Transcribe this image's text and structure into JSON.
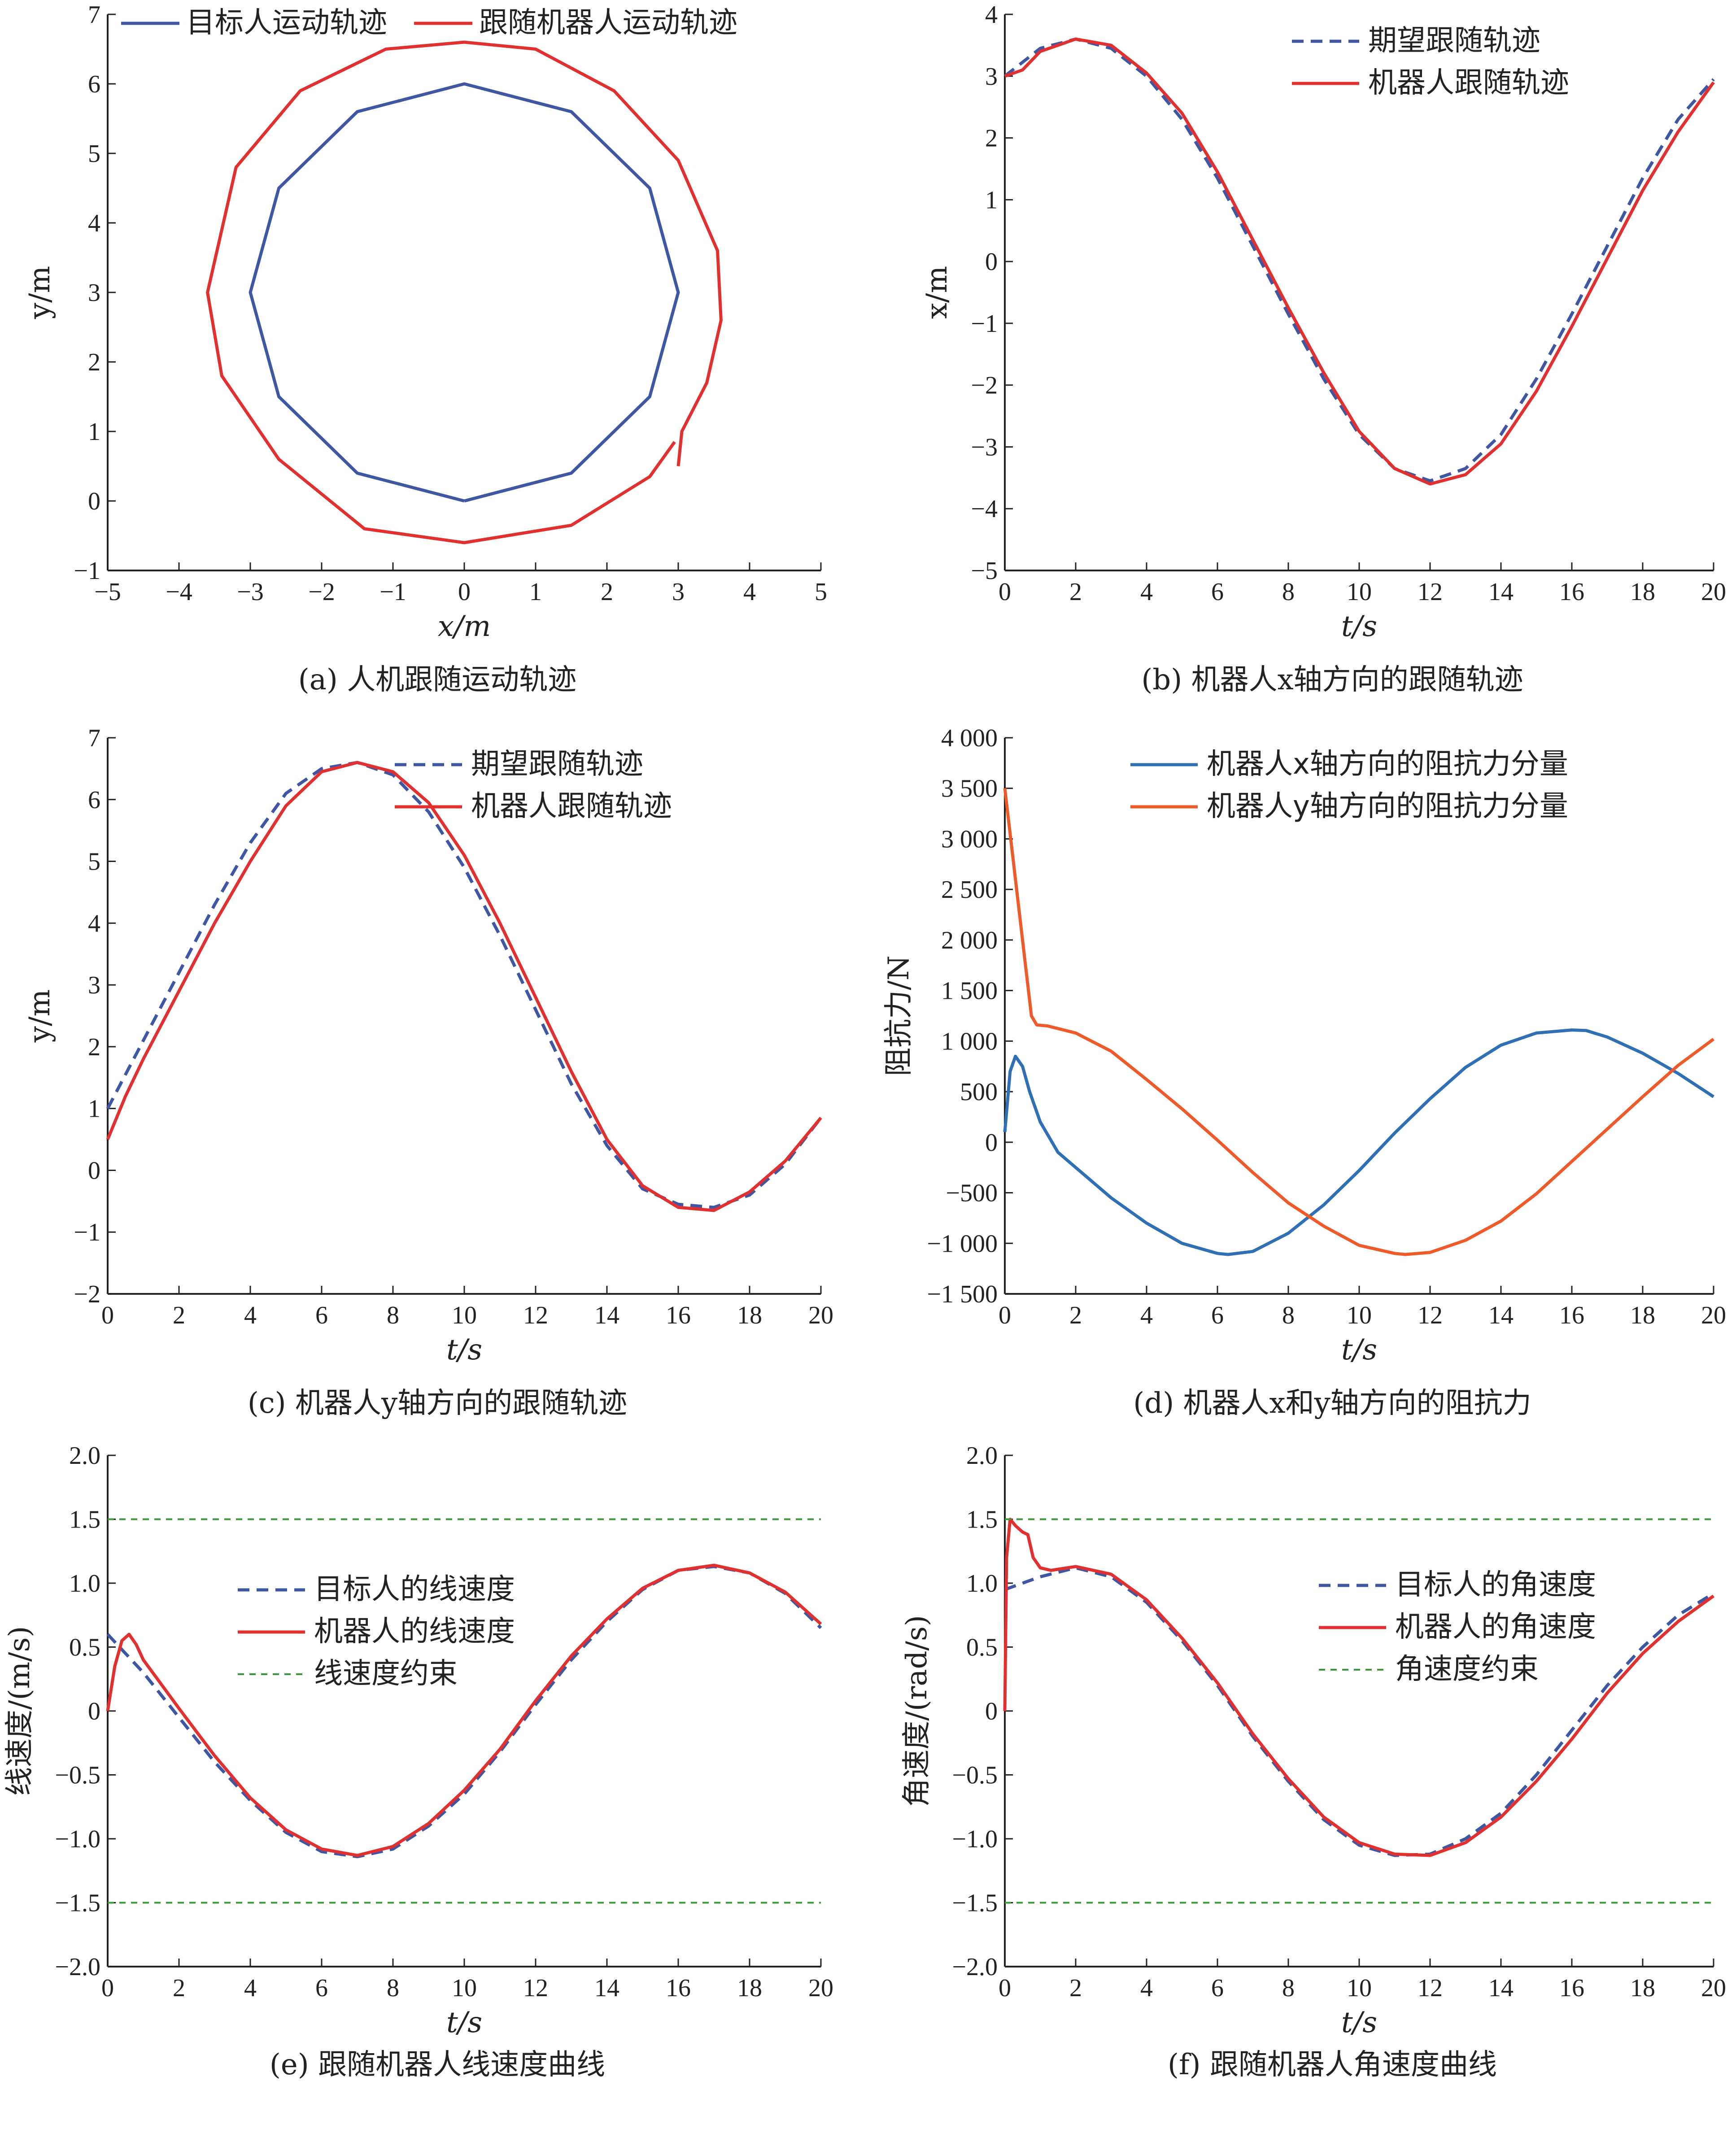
{
  "colors": {
    "blue": "#3f56a3",
    "red": "#e03030",
    "steel": "#2f6fb4",
    "orange": "#ee5a2a",
    "green": "#3a9a3a"
  },
  "chart_data": [
    {
      "id": "a",
      "type": "line",
      "caption": "(a) 人机跟随运动轨迹",
      "xlabel": "x/m",
      "ylabel": "y/m",
      "xlim": [
        -5,
        5
      ],
      "ylim": [
        -1,
        7
      ],
      "xticks": [
        "−5",
        "−4",
        "−3",
        "−2",
        "−1",
        "0",
        "1",
        "2",
        "3",
        "4",
        "5"
      ],
      "yticks": [
        "−1",
        "0",
        "1",
        "2",
        "3",
        "4",
        "5",
        "6",
        "7"
      ],
      "legend_position": "top",
      "series": [
        {
          "name": "目标人运动轨迹",
          "color": "#3f56a3",
          "dash": "solid",
          "x": [
            0,
            1.5,
            2.6,
            3,
            2.6,
            1.5,
            0,
            -1.5,
            -2.6,
            -3,
            -2.6,
            -1.5,
            0
          ],
          "y": [
            0,
            0.4,
            1.5,
            3,
            4.5,
            5.6,
            6,
            5.6,
            4.5,
            3,
            1.5,
            0.4,
            0
          ]
        },
        {
          "name": "跟随机器人运动轨迹",
          "color": "#e03030",
          "dash": "solid",
          "x": [
            3.0,
            3.05,
            3.4,
            3.6,
            3.55,
            3.0,
            2.1,
            1.0,
            0,
            -1.1,
            -2.3,
            -3.2,
            -3.6,
            -3.4,
            -2.6,
            -1.4,
            0,
            1.5,
            2.6,
            2.95
          ],
          "y": [
            0.5,
            1.0,
            1.7,
            2.6,
            3.6,
            4.9,
            5.9,
            6.5,
            6.6,
            6.5,
            5.9,
            4.8,
            3.0,
            1.8,
            0.6,
            -0.4,
            -0.6,
            -0.35,
            0.35,
            0.85
          ]
        }
      ]
    },
    {
      "id": "b",
      "type": "line",
      "caption": "(b) 机器人x轴方向的跟随轨迹",
      "xlabel": "t/s",
      "ylabel": "x/m",
      "xlim": [
        0,
        20
      ],
      "ylim": [
        -5,
        4
      ],
      "xticks": [
        "0",
        "2",
        "4",
        "6",
        "8",
        "10",
        "12",
        "14",
        "16",
        "18",
        "20"
      ],
      "yticks": [
        "−5",
        "−4",
        "−3",
        "−2",
        "−1",
        "0",
        "1",
        "2",
        "3",
        "4"
      ],
      "legend_position": "top-right",
      "series": [
        {
          "name": "期望跟随轨迹",
          "color": "#3f56a3",
          "dash": "dashed",
          "x": [
            0,
            1,
            2,
            3,
            4,
            5,
            6,
            7,
            8,
            9,
            10,
            11,
            12,
            13,
            14,
            15,
            16,
            17,
            18,
            19,
            20
          ],
          "y": [
            3.0,
            3.45,
            3.6,
            3.45,
            3.0,
            2.3,
            1.35,
            0.25,
            -0.85,
            -1.9,
            -2.8,
            -3.35,
            -3.55,
            -3.35,
            -2.8,
            -1.9,
            -0.85,
            0.25,
            1.35,
            2.3,
            2.95
          ]
        },
        {
          "name": "机器人跟随轨迹",
          "color": "#e03030",
          "dash": "solid",
          "x": [
            0,
            0.5,
            1,
            2,
            3,
            4,
            5,
            6,
            7,
            8,
            9,
            10,
            11,
            12,
            13,
            14,
            15,
            16,
            17,
            18,
            19,
            20
          ],
          "y": [
            3.0,
            3.1,
            3.4,
            3.6,
            3.5,
            3.05,
            2.4,
            1.45,
            0.35,
            -0.75,
            -1.8,
            -2.75,
            -3.35,
            -3.6,
            -3.45,
            -2.95,
            -2.1,
            -1.05,
            0.05,
            1.15,
            2.1,
            2.9
          ]
        }
      ]
    },
    {
      "id": "c",
      "type": "line",
      "caption": "(c) 机器人y轴方向的跟随轨迹",
      "xlabel": "t/s",
      "ylabel": "y/m",
      "xlim": [
        0,
        20
      ],
      "ylim": [
        -2,
        7
      ],
      "xticks": [
        "0",
        "2",
        "4",
        "6",
        "8",
        "10",
        "12",
        "14",
        "16",
        "18",
        "20"
      ],
      "yticks": [
        "−2",
        "−1",
        "0",
        "1",
        "2",
        "3",
        "4",
        "5",
        "6",
        "7"
      ],
      "legend_position": "top-right",
      "series": [
        {
          "name": "期望跟随轨迹",
          "color": "#3f56a3",
          "dash": "dashed",
          "x": [
            0,
            1,
            2,
            3,
            4,
            5,
            6,
            7,
            8,
            9,
            10,
            11,
            12,
            13,
            14,
            15,
            16,
            17,
            18,
            19,
            20
          ],
          "y": [
            1.0,
            2.1,
            3.2,
            4.3,
            5.3,
            6.1,
            6.5,
            6.6,
            6.4,
            5.8,
            4.9,
            3.8,
            2.6,
            1.4,
            0.4,
            -0.3,
            -0.55,
            -0.6,
            -0.4,
            0.1,
            0.85
          ]
        },
        {
          "name": "机器人跟随轨迹",
          "color": "#e03030",
          "dash": "solid",
          "x": [
            0,
            0.5,
            1,
            2,
            3,
            4,
            5,
            6,
            7,
            8,
            9,
            10,
            11,
            12,
            13,
            14,
            15,
            16,
            17,
            18,
            19,
            20
          ],
          "y": [
            0.5,
            1.2,
            1.8,
            2.9,
            4.0,
            5.0,
            5.9,
            6.45,
            6.6,
            6.45,
            5.95,
            5.1,
            4.0,
            2.8,
            1.6,
            0.5,
            -0.25,
            -0.6,
            -0.65,
            -0.35,
            0.15,
            0.85
          ]
        }
      ]
    },
    {
      "id": "d",
      "type": "line",
      "caption": "(d) 机器人x和y轴方向的阻抗力",
      "xlabel": "t/s",
      "ylabel": "阻抗力/N",
      "xlim": [
        0,
        20
      ],
      "ylim": [
        -1500,
        4000
      ],
      "xticks": [
        "0",
        "2",
        "4",
        "6",
        "8",
        "10",
        "12",
        "14",
        "16",
        "18",
        "20"
      ],
      "yticks": [
        "−1 500",
        "−1 000",
        "−500",
        "0",
        "500",
        "1 000",
        "1 500",
        "2 000",
        "2 500",
        "3 000",
        "3 500",
        "4 000"
      ],
      "legend_position": "top-right",
      "series": [
        {
          "name": "机器人x轴方向的阻抗力分量",
          "color": "#2f6fb4",
          "dash": "solid",
          "x": [
            0,
            0.15,
            0.3,
            0.5,
            0.7,
            1,
            1.5,
            2,
            3,
            4,
            5,
            6,
            6.3,
            7,
            8,
            9,
            10,
            11,
            12,
            13,
            14,
            15,
            16,
            16.4,
            17,
            18,
            19,
            20
          ],
          "y": [
            100,
            700,
            850,
            750,
            500,
            200,
            -100,
            -250,
            -550,
            -800,
            -1000,
            -1100,
            -1110,
            -1080,
            -900,
            -620,
            -280,
            90,
            430,
            740,
            960,
            1080,
            1110,
            1105,
            1040,
            880,
            680,
            450
          ]
        },
        {
          "name": "机器人y轴方向的阻抗力分量",
          "color": "#ee5a2a",
          "dash": "solid",
          "x": [
            0,
            0.2,
            0.4,
            0.6,
            0.75,
            0.9,
            1.2,
            2,
            3,
            4,
            5,
            6,
            7,
            8,
            9,
            10,
            11,
            11.3,
            12,
            13,
            14,
            15,
            16,
            17,
            18,
            19,
            20
          ],
          "y": [
            3500,
            2900,
            2300,
            1700,
            1250,
            1160,
            1150,
            1080,
            900,
            620,
            330,
            20,
            -300,
            -600,
            -830,
            -1020,
            -1100,
            -1110,
            -1090,
            -970,
            -780,
            -510,
            -190,
            130,
            450,
            760,
            1020
          ]
        }
      ]
    },
    {
      "id": "e",
      "type": "line",
      "caption": "(e) 跟随机器人线速度曲线",
      "xlabel": "t/s",
      "ylabel": "线速度/(m/s)",
      "xlim": [
        0,
        20
      ],
      "ylim": [
        -2.0,
        2.0
      ],
      "xticks": [
        "0",
        "2",
        "4",
        "6",
        "8",
        "10",
        "12",
        "14",
        "16",
        "18",
        "20"
      ],
      "yticks": [
        "−2.0",
        "−1.5",
        "−1.0",
        "−0.5",
        "0",
        "0.5",
        "1.0",
        "1.5",
        "2.0"
      ],
      "legend_position": "center-left",
      "series": [
        {
          "name": "目标人的线速度",
          "color": "#3f56a3",
          "dash": "dashed",
          "x": [
            0,
            1,
            2,
            3,
            4,
            5,
            6,
            7,
            8,
            9,
            10,
            11,
            12,
            13,
            14,
            15,
            16,
            17,
            18,
            19,
            20
          ],
          "y": [
            0.6,
            0.3,
            -0.05,
            -0.4,
            -0.7,
            -0.95,
            -1.1,
            -1.14,
            -1.08,
            -0.9,
            -0.65,
            -0.32,
            0.05,
            0.4,
            0.7,
            0.95,
            1.1,
            1.13,
            1.08,
            0.92,
            0.65
          ]
        },
        {
          "name": "机器人的线速度",
          "color": "#e03030",
          "dash": "solid",
          "x": [
            0,
            0.2,
            0.4,
            0.6,
            0.8,
            1,
            2,
            3,
            4,
            5,
            6,
            7,
            8,
            9,
            10,
            11,
            12,
            13,
            14,
            15,
            16,
            17,
            18,
            19,
            20
          ],
          "y": [
            0.0,
            0.35,
            0.55,
            0.6,
            0.52,
            0.4,
            0.02,
            -0.35,
            -0.68,
            -0.93,
            -1.08,
            -1.13,
            -1.06,
            -0.88,
            -0.62,
            -0.3,
            0.08,
            0.43,
            0.72,
            0.96,
            1.1,
            1.14,
            1.08,
            0.93,
            0.68
          ]
        },
        {
          "name": "线速度约束",
          "color": "#3a9a3a",
          "dash": "dotted",
          "x": [
            0,
            20
          ],
          "y": [
            1.5,
            1.5
          ],
          "mirror_y": [
            -1.5,
            -1.5
          ]
        }
      ]
    },
    {
      "id": "f",
      "type": "line",
      "caption": "(f) 跟随机器人角速度曲线",
      "xlabel": "t/s",
      "ylabel": "角速度/(rad/s)",
      "xlim": [
        0,
        20
      ],
      "ylim": [
        -2.0,
        2.0
      ],
      "xticks": [
        "0",
        "2",
        "4",
        "6",
        "8",
        "10",
        "12",
        "14",
        "16",
        "18",
        "20"
      ],
      "yticks": [
        "−2.0",
        "−1.5",
        "−1.0",
        "−0.5",
        "0",
        "0.5",
        "1.0",
        "1.5",
        "2.0"
      ],
      "legend_position": "top-right",
      "series": [
        {
          "name": "目标人的角速度",
          "color": "#3f56a3",
          "dash": "dashed",
          "x": [
            0,
            1,
            2,
            3,
            4,
            5,
            6,
            7,
            8,
            9,
            10,
            11,
            12,
            13,
            14,
            15,
            16,
            17,
            18,
            19,
            20
          ],
          "y": [
            0.95,
            1.05,
            1.12,
            1.05,
            0.85,
            0.55,
            0.2,
            -0.2,
            -0.55,
            -0.85,
            -1.05,
            -1.13,
            -1.12,
            -1.0,
            -0.8,
            -0.5,
            -0.15,
            0.2,
            0.5,
            0.75,
            0.92
          ]
        },
        {
          "name": "机器人的角速度",
          "color": "#e03030",
          "dash": "solid",
          "x": [
            0,
            0.05,
            0.15,
            0.3,
            0.5,
            0.65,
            0.8,
            1.0,
            1.3,
            2,
            3,
            4,
            5,
            6,
            7,
            8,
            9,
            10,
            11,
            12,
            13,
            14,
            15,
            16,
            17,
            18,
            19,
            20
          ],
          "y": [
            0.0,
            1.2,
            1.5,
            1.45,
            1.4,
            1.38,
            1.2,
            1.12,
            1.1,
            1.13,
            1.07,
            0.87,
            0.57,
            0.22,
            -0.18,
            -0.53,
            -0.83,
            -1.03,
            -1.12,
            -1.13,
            -1.03,
            -0.83,
            -0.55,
            -0.22,
            0.14,
            0.45,
            0.7,
            0.9
          ]
        },
        {
          "name": "角速度约束",
          "color": "#3a9a3a",
          "dash": "dotted",
          "x": [
            0,
            20
          ],
          "y": [
            1.5,
            1.5
          ],
          "mirror_y": [
            -1.5,
            -1.5
          ]
        }
      ]
    }
  ]
}
